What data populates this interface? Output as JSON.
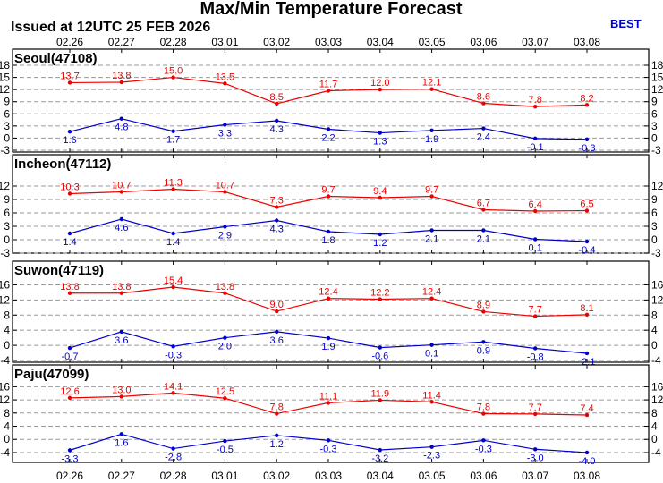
{
  "header": {
    "title": "Max/Min Temperature Forecast",
    "issued": "Issued at 12UTC 25 FEB 2026",
    "model": "BEST"
  },
  "colors": {
    "max": "#ee0000",
    "min": "#0000cc",
    "best": "#0000cc",
    "grid": "#9a9a9a"
  },
  "chart_data": [
    {
      "type": "line",
      "title": "Seoul(47108)",
      "categories": [
        "02.26",
        "02.27",
        "02.28",
        "03.01",
        "03.02",
        "03.03",
        "03.04",
        "03.05",
        "03.06",
        "03.07",
        "03.08"
      ],
      "yticks": [
        -3,
        0,
        3,
        6,
        9,
        12,
        15,
        18
      ],
      "ylim": [
        -3,
        18
      ],
      "grid": true,
      "series": [
        {
          "values": [
            13.7,
            13.8,
            15.0,
            13.5,
            8.5,
            11.7,
            12.0,
            12.1,
            8.6,
            7.8,
            8.2
          ],
          "labels": [
            "13.7",
            "13.8",
            "15.0",
            "13.5",
            "8.5",
            "11.7",
            "12.0",
            "12.1",
            "8.6",
            "7.8",
            "8.2"
          ]
        },
        {
          "values": [
            1.6,
            4.8,
            1.7,
            3.3,
            4.3,
            2.2,
            1.3,
            1.9,
            2.4,
            -0.1,
            -0.3
          ],
          "labels": [
            "1.6",
            "4.8",
            "1.7",
            "3.3",
            "4.3",
            "2.2",
            "1.3",
            "1.9",
            "2.4",
            "-0.1",
            "-0.3"
          ]
        }
      ]
    },
    {
      "type": "line",
      "title": "Incheon(47112)",
      "categories": [
        "02.26",
        "02.27",
        "02.28",
        "03.01",
        "03.02",
        "03.03",
        "03.04",
        "03.05",
        "03.06",
        "03.07",
        "03.08"
      ],
      "yticks": [
        -3,
        0,
        3,
        6,
        9,
        12
      ],
      "ylim": [
        -3,
        15
      ],
      "grid": true,
      "series": [
        {
          "values": [
            10.3,
            10.7,
            11.3,
            10.7,
            7.3,
            9.7,
            9.4,
            9.7,
            6.7,
            6.4,
            6.5
          ],
          "labels": [
            "10.3",
            "10.7",
            "11.3",
            "10.7",
            "7.3",
            "9.7",
            "9.4",
            "9.7",
            "6.7",
            "6.4",
            "6.5"
          ]
        },
        {
          "values": [
            1.4,
            4.6,
            1.4,
            2.9,
            4.3,
            1.8,
            1.2,
            2.1,
            2.1,
            0.1,
            -0.4
          ],
          "labels": [
            "1.4",
            "4.6",
            "1.4",
            "2.9",
            "4.3",
            "1.8",
            "1.2",
            "2.1",
            "2.1",
            "0.1",
            "-0.4"
          ]
        }
      ]
    },
    {
      "type": "line",
      "title": "Suwon(47119)",
      "categories": [
        "02.26",
        "02.27",
        "02.28",
        "03.01",
        "03.02",
        "03.03",
        "03.04",
        "03.05",
        "03.06",
        "03.07",
        "03.08"
      ],
      "yticks": [
        -4,
        0,
        4,
        8,
        12,
        16
      ],
      "ylim": [
        -4,
        18
      ],
      "grid": true,
      "series": [
        {
          "values": [
            13.8,
            13.8,
            15.4,
            13.8,
            9.0,
            12.4,
            12.2,
            12.4,
            8.9,
            7.7,
            8.1
          ],
          "labels": [
            "13.8",
            "13.8",
            "15.4",
            "13.8",
            "9.0",
            "12.4",
            "12.2",
            "12.4",
            "8.9",
            "7.7",
            "8.1"
          ]
        },
        {
          "values": [
            -0.7,
            3.6,
            -0.3,
            2.0,
            3.6,
            1.9,
            -0.6,
            0.1,
            0.9,
            -0.8,
            -2.1
          ],
          "labels": [
            "-0.7",
            "3.6",
            "-0.3",
            "2.0",
            "3.6",
            "1.9",
            "-0.6",
            "0.1",
            "0.9",
            "-0.8",
            "-2.1"
          ]
        }
      ]
    },
    {
      "type": "line",
      "title": "Paju(47099)",
      "categories": [
        "02.26",
        "02.27",
        "02.28",
        "03.01",
        "03.02",
        "03.03",
        "03.04",
        "03.05",
        "03.06",
        "03.07",
        "03.08"
      ],
      "yticks": [
        -4,
        0,
        4,
        8,
        12,
        16
      ],
      "ylim": [
        -7,
        18
      ],
      "grid": true,
      "series": [
        {
          "values": [
            12.6,
            13.0,
            14.1,
            12.5,
            7.8,
            11.1,
            11.9,
            11.4,
            7.8,
            7.7,
            7.4
          ],
          "labels": [
            "12.6",
            "13.0",
            "14.1",
            "12.5",
            "7.8",
            "11.1",
            "11.9",
            "11.4",
            "7.8",
            "7.7",
            "7.4"
          ]
        },
        {
          "values": [
            -3.3,
            1.6,
            -2.8,
            -0.5,
            1.2,
            -0.3,
            -3.2,
            -2.3,
            -0.3,
            -3.0,
            -4.0
          ],
          "labels": [
            "-3.3",
            "1.6",
            "-2.8",
            "-0.5",
            "1.2",
            "-0.3",
            "-3.2",
            "-2.3",
            "-0.3",
            "-3.0",
            "-4.0"
          ]
        }
      ]
    }
  ]
}
